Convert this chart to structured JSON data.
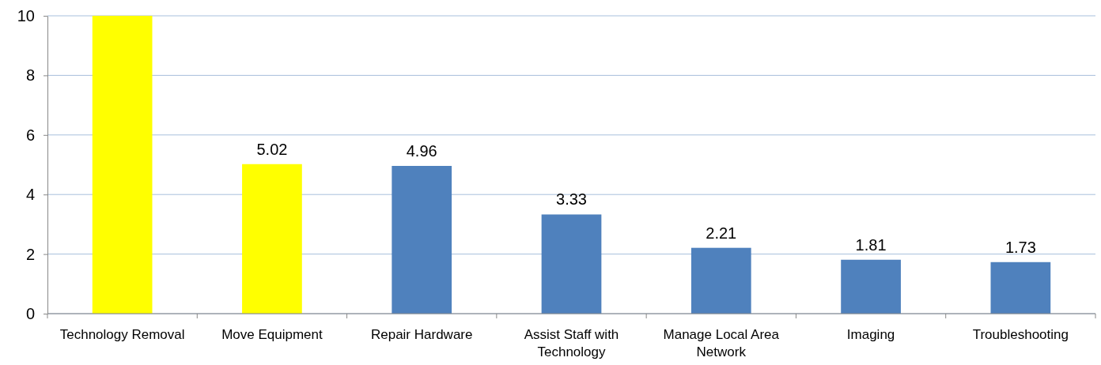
{
  "chart_data": {
    "type": "bar",
    "categories": [
      "Technology Removal",
      "Move Equipment",
      "Repair Hardware",
      "Assist Staff with Technology",
      "Manage Local Area Network",
      "Imaging",
      "Troubleshooting"
    ],
    "values": [
      10,
      5.02,
      4.96,
      3.33,
      2.21,
      1.81,
      1.73
    ],
    "colors": [
      "#ffff00",
      "#ffff00",
      "#4f81bd",
      "#4f81bd",
      "#4f81bd",
      "#4f81bd",
      "#4f81bd"
    ],
    "value_labels": [
      null,
      "5.02",
      "4.96",
      "3.33",
      "2.21",
      "1.81",
      "1.73"
    ],
    "ylim": [
      0,
      10
    ],
    "yticks": [
      0,
      2,
      4,
      6,
      8,
      10
    ],
    "grid": "y"
  }
}
